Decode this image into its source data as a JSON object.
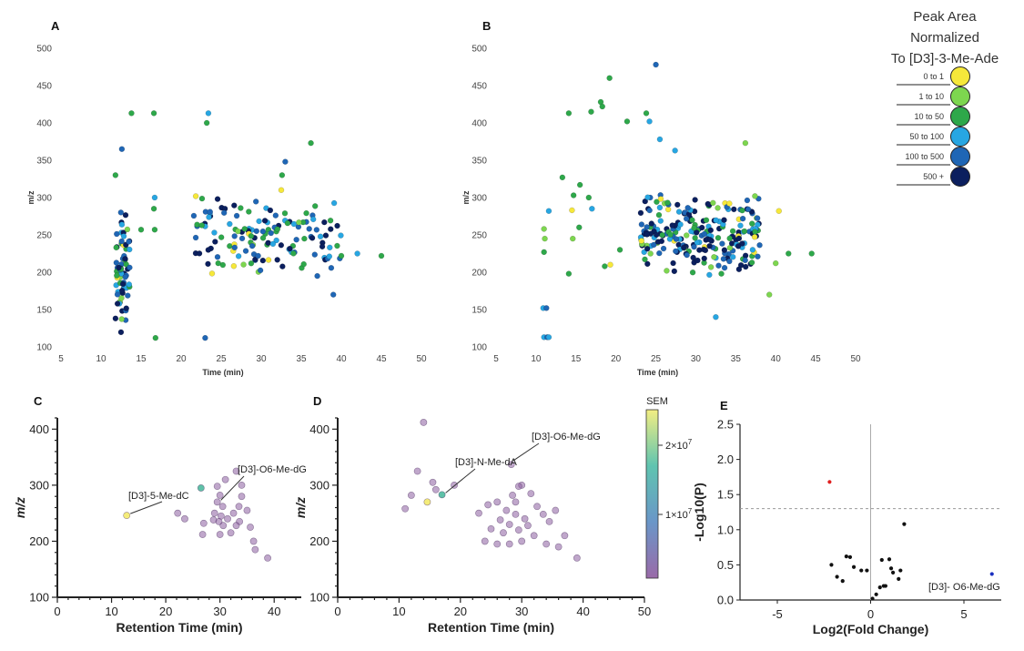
{
  "figure": {
    "legend": {
      "title_lines": [
        "Peak Area",
        "Normalized",
        "To [D3]-3-Me-Ade"
      ],
      "entries": [
        {
          "label": "0 to 1",
          "color": "#f6e83a"
        },
        {
          "label": "1 to 10",
          "color": "#7dd64f"
        },
        {
          "label": "10 to 50",
          "color": "#2ea84a"
        },
        {
          "label": "50 to 100",
          "color": "#27a6e2"
        },
        {
          "label": "100 to 500",
          "color": "#1f66b5"
        },
        {
          "label": "500 +",
          "color": "#0b1f5e"
        }
      ]
    },
    "colorbar": {
      "title": "SEM",
      "tick_labels": [
        "2×10",
        "1×10"
      ],
      "exponent": "7",
      "stops": [
        "#f3ee82",
        "#5fc4b0",
        "#6a96c8",
        "#9a6aa8"
      ]
    }
  },
  "chart_data": [
    {
      "panel": "A",
      "type": "scatter",
      "xlabel": "Time (min)",
      "ylabel": "m/z",
      "xlim": [
        5,
        50
      ],
      "ylim": [
        100,
        500
      ],
      "xticks": [
        5,
        10,
        15,
        20,
        25,
        30,
        35,
        40,
        45,
        50
      ],
      "yticks": [
        100,
        150,
        200,
        250,
        300,
        350,
        400,
        450,
        500
      ],
      "seed": 11,
      "clusters": [
        {
          "x": [
            11.8,
            13.6
          ],
          "y": [
            110,
            300
          ],
          "n": 70
        },
        {
          "x": [
            21.5,
            26.5
          ],
          "y": [
            195,
            330
          ],
          "n": 32
        },
        {
          "x": [
            26.5,
            40
          ],
          "y": [
            195,
            300
          ],
          "n": 105
        }
      ],
      "points": [
        {
          "x": 13.8,
          "y": 413,
          "c": 2
        },
        {
          "x": 16.6,
          "y": 413,
          "c": 2
        },
        {
          "x": 23.4,
          "y": 413,
          "c": 3
        },
        {
          "x": 23.2,
          "y": 400,
          "c": 2
        },
        {
          "x": 12.6,
          "y": 365,
          "c": 4
        },
        {
          "x": 36.2,
          "y": 373,
          "c": 2
        },
        {
          "x": 16.7,
          "y": 300,
          "c": 3
        },
        {
          "x": 16.6,
          "y": 285,
          "c": 2
        },
        {
          "x": 16.7,
          "y": 257,
          "c": 2
        },
        {
          "x": 15.0,
          "y": 257,
          "c": 2
        },
        {
          "x": 16.8,
          "y": 112,
          "c": 2
        },
        {
          "x": 23.0,
          "y": 112,
          "c": 4
        },
        {
          "x": 33.0,
          "y": 348,
          "c": 4
        },
        {
          "x": 32.6,
          "y": 330,
          "c": 2
        },
        {
          "x": 39.0,
          "y": 170,
          "c": 4
        },
        {
          "x": 42.0,
          "y": 225,
          "c": 3
        },
        {
          "x": 45.0,
          "y": 222,
          "c": 2
        },
        {
          "x": 40.0,
          "y": 222,
          "c": 2
        },
        {
          "x": 32.5,
          "y": 310,
          "c": 0
        },
        {
          "x": 11.8,
          "y": 330,
          "c": 2
        },
        {
          "x": 37.0,
          "y": 195,
          "c": 4
        }
      ]
    },
    {
      "panel": "B",
      "type": "scatter",
      "xlabel": "Time (min)",
      "ylabel": "m/z",
      "xlim": [
        5,
        50
      ],
      "ylim": [
        100,
        500
      ],
      "xticks": [
        5,
        10,
        15,
        20,
        25,
        30,
        35,
        40,
        45,
        50
      ],
      "yticks": [
        100,
        150,
        200,
        250,
        300,
        350,
        400,
        450,
        500
      ],
      "seed": 23,
      "clusters": [
        {
          "x": [
            23,
            38
          ],
          "y": [
            195,
            310
          ],
          "n": 230
        }
      ],
      "points": [
        {
          "x": 25.0,
          "y": 478,
          "c": 4
        },
        {
          "x": 19.2,
          "y": 460,
          "c": 2
        },
        {
          "x": 18.1,
          "y": 428,
          "c": 2
        },
        {
          "x": 18.3,
          "y": 422,
          "c": 2
        },
        {
          "x": 16.9,
          "y": 415,
          "c": 2
        },
        {
          "x": 14.1,
          "y": 413,
          "c": 2
        },
        {
          "x": 21.4,
          "y": 402,
          "c": 2
        },
        {
          "x": 23.8,
          "y": 413,
          "c": 2
        },
        {
          "x": 24.2,
          "y": 402,
          "c": 3
        },
        {
          "x": 36.2,
          "y": 373,
          "c": 1
        },
        {
          "x": 25.5,
          "y": 378,
          "c": 3
        },
        {
          "x": 27.4,
          "y": 363,
          "c": 3
        },
        {
          "x": 13.3,
          "y": 327,
          "c": 2
        },
        {
          "x": 15.5,
          "y": 317,
          "c": 2
        },
        {
          "x": 14.7,
          "y": 303,
          "c": 2
        },
        {
          "x": 16.6,
          "y": 300,
          "c": 2
        },
        {
          "x": 17.0,
          "y": 285,
          "c": 3
        },
        {
          "x": 11.6,
          "y": 282,
          "c": 3
        },
        {
          "x": 14.5,
          "y": 283,
          "c": 0
        },
        {
          "x": 11.0,
          "y": 258,
          "c": 1
        },
        {
          "x": 11.1,
          "y": 245,
          "c": 1
        },
        {
          "x": 11.0,
          "y": 227,
          "c": 2
        },
        {
          "x": 14.6,
          "y": 245,
          "c": 1
        },
        {
          "x": 15.4,
          "y": 260,
          "c": 2
        },
        {
          "x": 14.1,
          "y": 198,
          "c": 2
        },
        {
          "x": 18.6,
          "y": 208,
          "c": 2
        },
        {
          "x": 19.3,
          "y": 210,
          "c": 0
        },
        {
          "x": 20.5,
          "y": 230,
          "c": 2
        },
        {
          "x": 10.9,
          "y": 152,
          "c": 3
        },
        {
          "x": 11.3,
          "y": 152,
          "c": 4
        },
        {
          "x": 11.0,
          "y": 113,
          "c": 3
        },
        {
          "x": 11.4,
          "y": 113,
          "c": 4
        },
        {
          "x": 11.6,
          "y": 113,
          "c": 3
        },
        {
          "x": 40.4,
          "y": 282,
          "c": 0
        },
        {
          "x": 34.2,
          "y": 292,
          "c": 0
        },
        {
          "x": 23.2,
          "y": 242,
          "c": 0
        },
        {
          "x": 37.4,
          "y": 302,
          "c": 1
        },
        {
          "x": 39.2,
          "y": 170,
          "c": 1
        },
        {
          "x": 40.0,
          "y": 212,
          "c": 1
        },
        {
          "x": 44.5,
          "y": 225,
          "c": 2
        },
        {
          "x": 41.6,
          "y": 225,
          "c": 2
        },
        {
          "x": 32.5,
          "y": 140,
          "c": 3
        },
        {
          "x": 33.2,
          "y": 198,
          "c": 2
        }
      ]
    },
    {
      "panel": "C",
      "type": "scatter",
      "xlabel": "Retention Time (min)",
      "ylabel": "m/z",
      "xlim": [
        0,
        45
      ],
      "ylim": [
        100,
        420
      ],
      "xticks": [
        0,
        10,
        20,
        30,
        40
      ],
      "yticks": [
        100,
        200,
        300,
        400
      ],
      "annotations": [
        "[D3]-5-Me-dC",
        "[D3]-O6-Me-dG"
      ],
      "points": [
        {
          "x": 12.8,
          "y": 246,
          "c": "y"
        },
        {
          "x": 26.5,
          "y": 295,
          "c": "b"
        },
        {
          "x": 29.5,
          "y": 298,
          "c": "p"
        },
        {
          "x": 33.0,
          "y": 325,
          "c": "p"
        },
        {
          "x": 22.2,
          "y": 250,
          "c": "p"
        },
        {
          "x": 23.5,
          "y": 240,
          "c": "p"
        },
        {
          "x": 27.0,
          "y": 232,
          "c": "p"
        },
        {
          "x": 26.8,
          "y": 212,
          "c": "p"
        },
        {
          "x": 29.5,
          "y": 270,
          "c": "p"
        },
        {
          "x": 30.0,
          "y": 282,
          "c": "p"
        },
        {
          "x": 30.5,
          "y": 262,
          "c": "p"
        },
        {
          "x": 29.0,
          "y": 250,
          "c": "p"
        },
        {
          "x": 30.2,
          "y": 245,
          "c": "p"
        },
        {
          "x": 29.8,
          "y": 235,
          "c": "p"
        },
        {
          "x": 30.6,
          "y": 228,
          "c": "p"
        },
        {
          "x": 31.4,
          "y": 240,
          "c": "p"
        },
        {
          "x": 32.5,
          "y": 250,
          "c": "p"
        },
        {
          "x": 33.5,
          "y": 262,
          "c": "p"
        },
        {
          "x": 34.0,
          "y": 280,
          "c": "p"
        },
        {
          "x": 35.0,
          "y": 255,
          "c": "p"
        },
        {
          "x": 32.0,
          "y": 215,
          "c": "p"
        },
        {
          "x": 30.0,
          "y": 212,
          "c": "p"
        },
        {
          "x": 33.6,
          "y": 235,
          "c": "p"
        },
        {
          "x": 35.6,
          "y": 225,
          "c": "p"
        },
        {
          "x": 36.2,
          "y": 200,
          "c": "p"
        },
        {
          "x": 36.5,
          "y": 185,
          "c": "p"
        },
        {
          "x": 38.8,
          "y": 170,
          "c": "p"
        },
        {
          "x": 31.0,
          "y": 310,
          "c": "p"
        },
        {
          "x": 34.0,
          "y": 300,
          "c": "p"
        },
        {
          "x": 33.0,
          "y": 228,
          "c": "p"
        },
        {
          "x": 28.8,
          "y": 238,
          "c": "p"
        }
      ]
    },
    {
      "panel": "D",
      "type": "scatter",
      "xlabel": "Retention Time (min)",
      "ylabel": "m/z",
      "xlim": [
        0,
        50
      ],
      "ylim": [
        100,
        420
      ],
      "xticks": [
        0,
        10,
        20,
        30,
        40,
        50
      ],
      "yticks": [
        100,
        200,
        300,
        400
      ],
      "annotations": [
        "[D3]-N-Me-dA",
        "[D3]-O6-Me-dG"
      ],
      "points": [
        {
          "x": 14.0,
          "y": 412,
          "c": "p"
        },
        {
          "x": 14.6,
          "y": 270,
          "c": "y"
        },
        {
          "x": 17.0,
          "y": 283,
          "c": "b"
        },
        {
          "x": 13.0,
          "y": 325,
          "c": "p"
        },
        {
          "x": 15.5,
          "y": 305,
          "c": "p"
        },
        {
          "x": 12.0,
          "y": 282,
          "c": "p"
        },
        {
          "x": 11.0,
          "y": 258,
          "c": "p"
        },
        {
          "x": 16.0,
          "y": 292,
          "c": "p"
        },
        {
          "x": 19.0,
          "y": 300,
          "c": "p"
        },
        {
          "x": 28.3,
          "y": 337,
          "c": "p"
        },
        {
          "x": 24.5,
          "y": 265,
          "c": "p"
        },
        {
          "x": 26.0,
          "y": 270,
          "c": "p"
        },
        {
          "x": 27.5,
          "y": 255,
          "c": "p"
        },
        {
          "x": 29.0,
          "y": 248,
          "c": "p"
        },
        {
          "x": 30.5,
          "y": 240,
          "c": "p"
        },
        {
          "x": 28.0,
          "y": 230,
          "c": "p"
        },
        {
          "x": 27.0,
          "y": 215,
          "c": "p"
        },
        {
          "x": 25.0,
          "y": 222,
          "c": "p"
        },
        {
          "x": 24.0,
          "y": 200,
          "c": "p"
        },
        {
          "x": 26.0,
          "y": 195,
          "c": "p"
        },
        {
          "x": 29.5,
          "y": 220,
          "c": "p"
        },
        {
          "x": 30.0,
          "y": 300,
          "c": "p"
        },
        {
          "x": 31.5,
          "y": 285,
          "c": "p"
        },
        {
          "x": 32.5,
          "y": 262,
          "c": "p"
        },
        {
          "x": 33.5,
          "y": 248,
          "c": "p"
        },
        {
          "x": 34.5,
          "y": 235,
          "c": "p"
        },
        {
          "x": 32.0,
          "y": 210,
          "c": "p"
        },
        {
          "x": 30.0,
          "y": 200,
          "c": "p"
        },
        {
          "x": 28.0,
          "y": 195,
          "c": "p"
        },
        {
          "x": 35.5,
          "y": 255,
          "c": "p"
        },
        {
          "x": 37.0,
          "y": 210,
          "c": "p"
        },
        {
          "x": 36.0,
          "y": 190,
          "c": "p"
        },
        {
          "x": 39.0,
          "y": 170,
          "c": "p"
        },
        {
          "x": 34.0,
          "y": 195,
          "c": "p"
        },
        {
          "x": 26.5,
          "y": 238,
          "c": "p"
        },
        {
          "x": 29.0,
          "y": 270,
          "c": "p"
        },
        {
          "x": 31.0,
          "y": 228,
          "c": "p"
        },
        {
          "x": 23.0,
          "y": 250,
          "c": "p"
        },
        {
          "x": 28.5,
          "y": 282,
          "c": "p"
        },
        {
          "x": 29.5,
          "y": 298,
          "c": "p"
        }
      ]
    },
    {
      "panel": "E",
      "type": "scatter",
      "xlabel": "Log2(Fold Change)",
      "ylabel": "-Log10(P)",
      "xlim": [
        -7,
        7
      ],
      "ylim": [
        0,
        2.5
      ],
      "xticks": [
        -5,
        0,
        5
      ],
      "yticks": [
        0.0,
        0.5,
        1.0,
        1.5,
        2.0,
        2.5
      ],
      "ytick_labels": [
        "0.0",
        "0.5",
        "1.0",
        "1.5",
        "2.0",
        "2.5"
      ],
      "threshold": 1.3,
      "annotation": "[D3]- O6-Me-dG",
      "points": [
        {
          "x": -2.2,
          "y": 1.68,
          "c": "red"
        },
        {
          "x": 6.5,
          "y": 0.37,
          "c": "blue"
        },
        {
          "x": -2.1,
          "y": 0.5,
          "c": "black"
        },
        {
          "x": -1.8,
          "y": 0.33,
          "c": "black"
        },
        {
          "x": -1.5,
          "y": 0.27,
          "c": "black"
        },
        {
          "x": -1.3,
          "y": 0.62,
          "c": "black"
        },
        {
          "x": -1.1,
          "y": 0.61,
          "c": "black"
        },
        {
          "x": -0.9,
          "y": 0.47,
          "c": "black"
        },
        {
          "x": -0.5,
          "y": 0.42,
          "c": "black"
        },
        {
          "x": -0.2,
          "y": 0.42,
          "c": "black"
        },
        {
          "x": 0.1,
          "y": 0.02,
          "c": "black"
        },
        {
          "x": 0.3,
          "y": 0.08,
          "c": "black"
        },
        {
          "x": 0.5,
          "y": 0.18,
          "c": "black"
        },
        {
          "x": 0.6,
          "y": 0.57,
          "c": "black"
        },
        {
          "x": 0.7,
          "y": 0.2,
          "c": "black"
        },
        {
          "x": 0.8,
          "y": 0.2,
          "c": "black"
        },
        {
          "x": 1.0,
          "y": 0.58,
          "c": "black"
        },
        {
          "x": 1.1,
          "y": 0.45,
          "c": "black"
        },
        {
          "x": 1.2,
          "y": 0.39,
          "c": "black"
        },
        {
          "x": 1.5,
          "y": 0.3,
          "c": "black"
        },
        {
          "x": 1.6,
          "y": 0.42,
          "c": "black"
        },
        {
          "x": 1.8,
          "y": 1.08,
          "c": "black"
        }
      ]
    }
  ]
}
